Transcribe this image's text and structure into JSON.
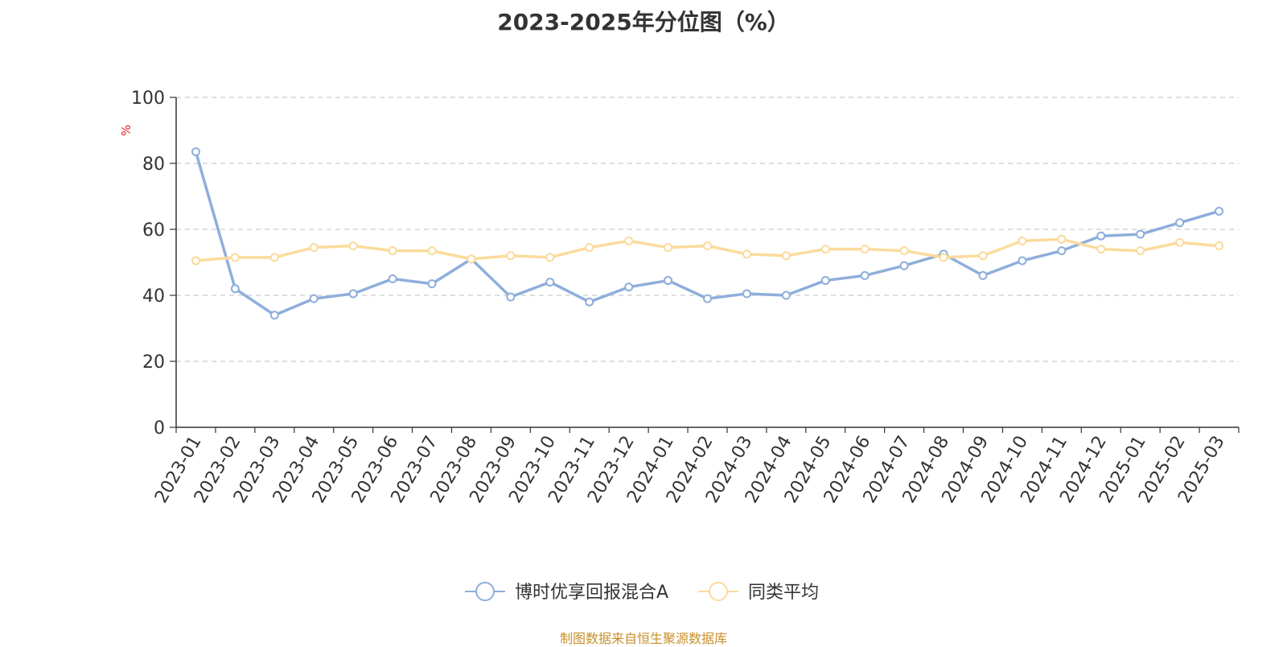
{
  "title": "2023-2025年分位图（%）",
  "source": "制图数据来自恒生聚源数据库",
  "colors": {
    "series_1": "#8eaedb",
    "series_2": "#fbdb9c",
    "axis": "#333333",
    "grid": "#cccccc",
    "unit": "#e02020",
    "source": "#c8902a"
  },
  "chart_data": {
    "type": "line",
    "ylabel": "%",
    "ylim": [
      0,
      100
    ],
    "yticks": [
      "0",
      "20",
      "40",
      "60",
      "80",
      "100"
    ],
    "grid": true,
    "legend_position": "bottom-center",
    "x": [
      "2023-01",
      "2023-02",
      "2023-03",
      "2023-04",
      "2023-05",
      "2023-06",
      "2023-07",
      "2023-08",
      "2023-09",
      "2023-10",
      "2023-11",
      "2023-12",
      "2024-01",
      "2024-02",
      "2024-03",
      "2024-04",
      "2024-05",
      "2024-06",
      "2024-07",
      "2024-08",
      "2024-09",
      "2024-10",
      "2024-11",
      "2024-12",
      "2025-01",
      "2025-02",
      "2025-03"
    ],
    "series": [
      {
        "name": "博时优享回报混合A",
        "values": [
          83.5,
          42,
          34,
          39,
          40.5,
          45,
          43.5,
          51,
          39.5,
          44,
          38,
          42.5,
          44.5,
          39,
          40.5,
          40,
          44.5,
          46,
          49,
          52.5,
          46,
          50.5,
          53.5,
          58,
          58.5,
          62,
          65.5
        ]
      },
      {
        "name": "同类平均",
        "values": [
          50.5,
          51.5,
          51.5,
          54.5,
          55,
          53.5,
          53.5,
          51,
          52,
          51.5,
          54.5,
          56.5,
          54.5,
          55,
          52.5,
          52,
          54,
          54,
          53.5,
          51.5,
          52,
          56.5,
          57,
          54,
          53.5,
          56,
          55
        ]
      }
    ]
  }
}
